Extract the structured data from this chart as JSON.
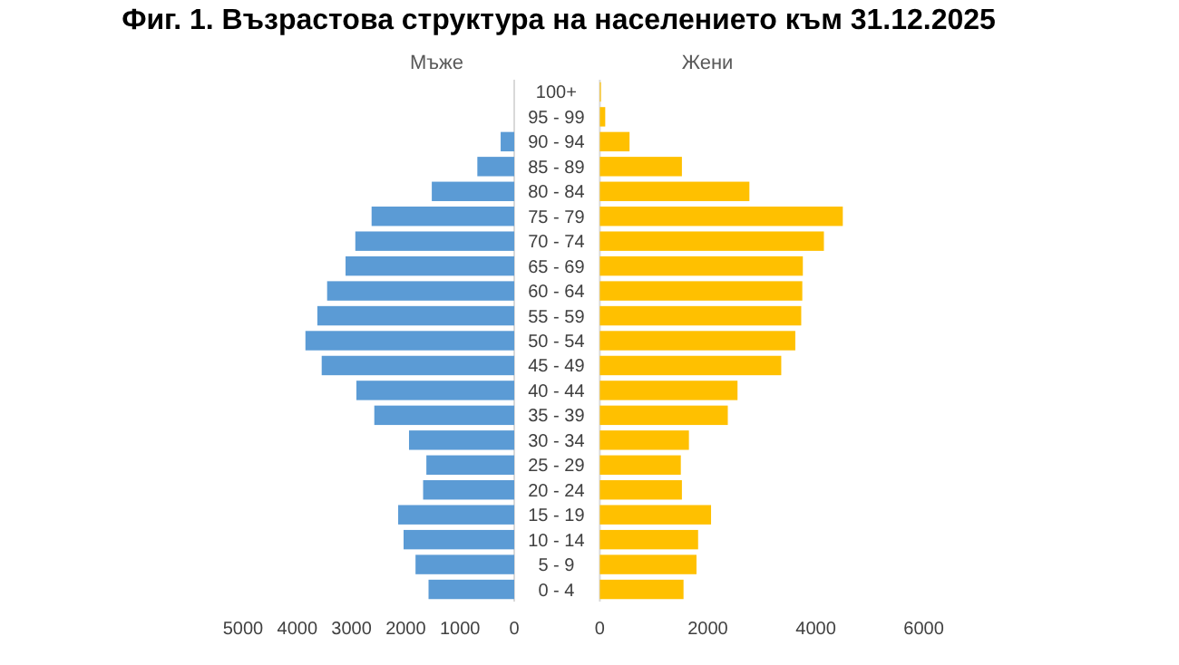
{
  "chart_data": [
    {
      "type": "bar",
      "orientation": "horizontal",
      "title": "Фиг. 1. Възрастова структура на населението към 31.12.2025",
      "subtitle": "Мъже",
      "categories": [
        null,
        null,
        null,
        null,
        null,
        null,
        null,
        null,
        null,
        null,
        null,
        null,
        null,
        null,
        null,
        null,
        null,
        null,
        null,
        null,
        null
      ],
      "values": [
        null,
        null,
        250,
        680,
        1520,
        2630,
        2930,
        3110,
        3450,
        3630,
        3850,
        3550,
        2910,
        2580,
        1940,
        1620,
        1680,
        2140,
        2040,
        1820,
        1580
      ],
      "color": "#5b9bd5",
      "xlim": [
        5000,
        0
      ],
      "xticks": [
        5000,
        4000,
        3000,
        2000,
        1000,
        0
      ],
      "tick_labels": "x"
    },
    {
      "type": "bar",
      "orientation": "horizontal",
      "subtitle": "Жени",
      "categories": [
        "100+",
        "95 - 99",
        "90 - 94",
        "85 - 89",
        "80 - 84",
        "75 - 79",
        "70 - 74",
        "65 - 69",
        "60 - 64",
        "55 - 59",
        "50 - 54",
        "45 - 49",
        "40 - 44",
        "35 - 39",
        "30 - 34",
        "25 - 29",
        "20 - 24",
        "15 - 19",
        "10 - 14",
        "5 - 9",
        "0 - 4"
      ],
      "values": [
        20,
        100,
        550,
        1520,
        2770,
        4500,
        4150,
        3760,
        3750,
        3730,
        3620,
        3360,
        2550,
        2370,
        1650,
        1500,
        1520,
        2060,
        1820,
        1790,
        1550
      ],
      "color": "#ffc000",
      "xlim": [
        0,
        6000
      ],
      "xticks": [
        0,
        2000,
        4000,
        6000
      ]
    }
  ]
}
